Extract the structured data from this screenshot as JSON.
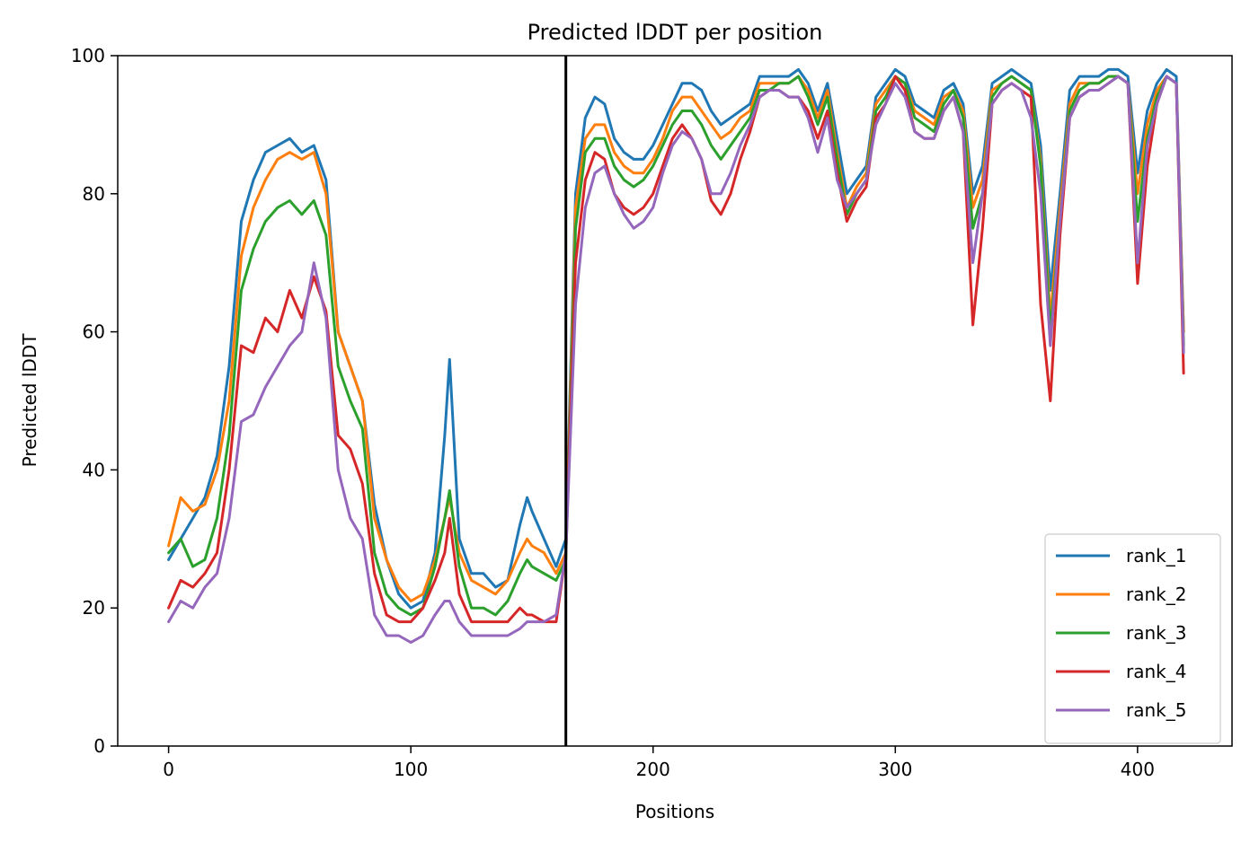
{
  "chart_data": {
    "type": "line",
    "title": "Predicted lDDT per position",
    "xlabel": "Positions",
    "ylabel": "Predicted lDDT",
    "xlim": [
      -21,
      439
    ],
    "ylim": [
      0,
      100
    ],
    "xticks": [
      0,
      100,
      200,
      300,
      400
    ],
    "yticks": [
      0,
      20,
      40,
      60,
      80,
      100
    ],
    "vline_x": 164,
    "grid": false,
    "legend_position": "lower-right",
    "series": [
      {
        "name": "rank_1",
        "color": "#1f77b4",
        "x": [
          0,
          5,
          10,
          15,
          20,
          25,
          30,
          35,
          40,
          45,
          50,
          55,
          60,
          65,
          70,
          75,
          80,
          85,
          90,
          95,
          100,
          105,
          110,
          114,
          116,
          120,
          125,
          130,
          135,
          140,
          145,
          148,
          150,
          155,
          160,
          164,
          168,
          172,
          176,
          180,
          184,
          188,
          192,
          196,
          200,
          204,
          208,
          212,
          216,
          220,
          224,
          228,
          232,
          236,
          240,
          244,
          248,
          252,
          256,
          260,
          264,
          268,
          272,
          276,
          280,
          284,
          288,
          292,
          296,
          300,
          304,
          308,
          312,
          316,
          320,
          324,
          328,
          332,
          336,
          340,
          344,
          348,
          352,
          356,
          360,
          364,
          368,
          372,
          376,
          380,
          384,
          388,
          392,
          396,
          400,
          404,
          408,
          412,
          416,
          419
        ],
        "y": [
          27,
          30,
          33,
          36,
          42,
          55,
          76,
          82,
          86,
          87,
          88,
          86,
          87,
          82,
          60,
          55,
          50,
          35,
          27,
          22,
          20,
          21,
          28,
          45,
          56,
          30,
          25,
          25,
          23,
          24,
          32,
          36,
          34,
          30,
          26,
          30,
          80,
          91,
          94,
          93,
          88,
          86,
          85,
          85,
          87,
          90,
          93,
          96,
          96,
          95,
          92,
          90,
          91,
          92,
          93,
          97,
          97,
          97,
          97,
          98,
          96,
          92,
          96,
          88,
          80,
          82,
          84,
          94,
          96,
          98,
          97,
          93,
          92,
          91,
          95,
          96,
          93,
          80,
          84,
          96,
          97,
          98,
          97,
          96,
          87,
          66,
          80,
          95,
          97,
          97,
          97,
          98,
          98,
          97,
          83,
          92,
          96,
          98,
          97,
          60
        ]
      },
      {
        "name": "rank_2",
        "color": "#ff7f0e",
        "x": [
          0,
          5,
          10,
          15,
          20,
          25,
          30,
          35,
          40,
          45,
          50,
          55,
          60,
          65,
          70,
          75,
          80,
          85,
          90,
          95,
          100,
          105,
          110,
          114,
          116,
          120,
          125,
          130,
          135,
          140,
          145,
          148,
          150,
          155,
          160,
          164,
          168,
          172,
          176,
          180,
          184,
          188,
          192,
          196,
          200,
          204,
          208,
          212,
          216,
          220,
          224,
          228,
          232,
          236,
          240,
          244,
          248,
          252,
          256,
          260,
          264,
          268,
          272,
          276,
          280,
          284,
          288,
          292,
          296,
          300,
          304,
          308,
          312,
          316,
          320,
          324,
          328,
          332,
          336,
          340,
          344,
          348,
          352,
          356,
          360,
          364,
          368,
          372,
          376,
          380,
          384,
          388,
          392,
          396,
          400,
          404,
          408,
          412,
          416,
          419
        ],
        "y": [
          29,
          36,
          34,
          35,
          40,
          50,
          71,
          78,
          82,
          85,
          86,
          85,
          86,
          80,
          60,
          55,
          50,
          33,
          27,
          23,
          21,
          22,
          27,
          33,
          36,
          28,
          24,
          23,
          22,
          24,
          28,
          30,
          29,
          28,
          25,
          28,
          78,
          88,
          90,
          90,
          86,
          84,
          83,
          83,
          85,
          88,
          92,
          94,
          94,
          92,
          90,
          88,
          89,
          91,
          92,
          96,
          96,
          96,
          96,
          97,
          95,
          91,
          95,
          86,
          78,
          81,
          83,
          93,
          95,
          97,
          96,
          92,
          91,
          90,
          94,
          95,
          92,
          78,
          82,
          95,
          96,
          97,
          96,
          95,
          85,
          62,
          78,
          93,
          96,
          96,
          96,
          97,
          97,
          96,
          80,
          90,
          95,
          97,
          96,
          60
        ]
      },
      {
        "name": "rank_3",
        "color": "#2ca02c",
        "x": [
          0,
          5,
          10,
          15,
          20,
          25,
          30,
          35,
          40,
          45,
          50,
          55,
          60,
          65,
          70,
          75,
          80,
          85,
          90,
          95,
          100,
          105,
          110,
          114,
          116,
          120,
          125,
          130,
          135,
          140,
          145,
          148,
          150,
          155,
          160,
          164,
          168,
          172,
          176,
          180,
          184,
          188,
          192,
          196,
          200,
          204,
          208,
          212,
          216,
          220,
          224,
          228,
          232,
          236,
          240,
          244,
          248,
          252,
          256,
          260,
          264,
          268,
          272,
          276,
          280,
          284,
          288,
          292,
          296,
          300,
          304,
          308,
          312,
          316,
          320,
          324,
          328,
          332,
          336,
          340,
          344,
          348,
          352,
          356,
          360,
          364,
          368,
          372,
          376,
          380,
          384,
          388,
          392,
          396,
          400,
          404,
          408,
          412,
          416,
          419
        ],
        "y": [
          28,
          30,
          26,
          27,
          33,
          45,
          66,
          72,
          76,
          78,
          79,
          77,
          79,
          74,
          55,
          50,
          46,
          28,
          22,
          20,
          19,
          20,
          26,
          33,
          37,
          26,
          20,
          20,
          19,
          21,
          25,
          27,
          26,
          25,
          24,
          27,
          75,
          86,
          88,
          88,
          84,
          82,
          81,
          82,
          84,
          87,
          90,
          92,
          92,
          90,
          87,
          85,
          87,
          89,
          91,
          95,
          95,
          96,
          96,
          97,
          94,
          90,
          94,
          85,
          77,
          80,
          82,
          92,
          94,
          97,
          96,
          91,
          90,
          89,
          93,
          95,
          91,
          75,
          80,
          94,
          96,
          97,
          96,
          95,
          84,
          60,
          76,
          92,
          95,
          96,
          96,
          97,
          97,
          96,
          76,
          88,
          94,
          97,
          96,
          58
        ]
      },
      {
        "name": "rank_4",
        "color": "#d62728",
        "x": [
          0,
          5,
          10,
          15,
          20,
          25,
          30,
          35,
          40,
          45,
          50,
          55,
          60,
          65,
          70,
          75,
          80,
          85,
          90,
          95,
          100,
          105,
          110,
          114,
          116,
          120,
          125,
          130,
          135,
          140,
          145,
          148,
          150,
          155,
          160,
          164,
          168,
          172,
          176,
          180,
          184,
          188,
          192,
          196,
          200,
          204,
          208,
          212,
          216,
          220,
          224,
          228,
          232,
          236,
          240,
          244,
          248,
          252,
          256,
          260,
          264,
          268,
          272,
          276,
          280,
          284,
          288,
          292,
          296,
          300,
          304,
          308,
          312,
          316,
          320,
          324,
          328,
          332,
          336,
          340,
          344,
          348,
          352,
          356,
          360,
          364,
          368,
          372,
          376,
          380,
          384,
          388,
          392,
          396,
          400,
          404,
          408,
          412,
          416,
          419
        ],
        "y": [
          20,
          24,
          23,
          25,
          28,
          40,
          58,
          57,
          62,
          60,
          66,
          62,
          68,
          63,
          45,
          43,
          38,
          25,
          19,
          18,
          18,
          20,
          24,
          28,
          33,
          22,
          18,
          18,
          18,
          18,
          20,
          19,
          19,
          18,
          18,
          28,
          70,
          82,
          86,
          85,
          80,
          78,
          77,
          78,
          80,
          84,
          88,
          90,
          88,
          85,
          79,
          77,
          80,
          85,
          89,
          94,
          95,
          95,
          94,
          94,
          92,
          88,
          92,
          83,
          76,
          79,
          81,
          91,
          93,
          97,
          95,
          89,
          88,
          88,
          92,
          94,
          89,
          61,
          75,
          93,
          95,
          96,
          95,
          94,
          64,
          50,
          74,
          91,
          94,
          95,
          95,
          96,
          97,
          96,
          67,
          84,
          93,
          97,
          96,
          54
        ]
      },
      {
        "name": "rank_5",
        "color": "#9467bd",
        "x": [
          0,
          5,
          10,
          15,
          20,
          25,
          30,
          35,
          40,
          45,
          50,
          55,
          60,
          65,
          70,
          75,
          80,
          85,
          90,
          95,
          100,
          105,
          110,
          114,
          116,
          120,
          125,
          130,
          135,
          140,
          145,
          148,
          150,
          155,
          160,
          164,
          168,
          172,
          176,
          180,
          184,
          188,
          192,
          196,
          200,
          204,
          208,
          212,
          216,
          220,
          224,
          228,
          232,
          236,
          240,
          244,
          248,
          252,
          256,
          260,
          264,
          268,
          272,
          276,
          280,
          284,
          288,
          292,
          296,
          300,
          304,
          308,
          312,
          316,
          320,
          324,
          328,
          332,
          336,
          340,
          344,
          348,
          352,
          356,
          360,
          364,
          368,
          372,
          376,
          380,
          384,
          388,
          392,
          396,
          400,
          404,
          408,
          412,
          416,
          419
        ],
        "y": [
          18,
          21,
          20,
          23,
          25,
          33,
          47,
          48,
          52,
          55,
          58,
          60,
          70,
          62,
          40,
          33,
          30,
          19,
          16,
          16,
          15,
          16,
          19,
          21,
          21,
          18,
          16,
          16,
          16,
          16,
          17,
          18,
          18,
          18,
          19,
          28,
          64,
          78,
          83,
          84,
          80,
          77,
          75,
          76,
          78,
          83,
          87,
          89,
          88,
          85,
          80,
          80,
          83,
          87,
          90,
          94,
          95,
          95,
          94,
          94,
          91,
          86,
          91,
          82,
          78,
          80,
          82,
          90,
          93,
          96,
          94,
          89,
          88,
          88,
          92,
          94,
          89,
          70,
          80,
          93,
          95,
          96,
          95,
          91,
          80,
          58,
          76,
          91,
          94,
          95,
          95,
          96,
          97,
          96,
          70,
          87,
          93,
          97,
          96,
          57
        ]
      }
    ]
  }
}
